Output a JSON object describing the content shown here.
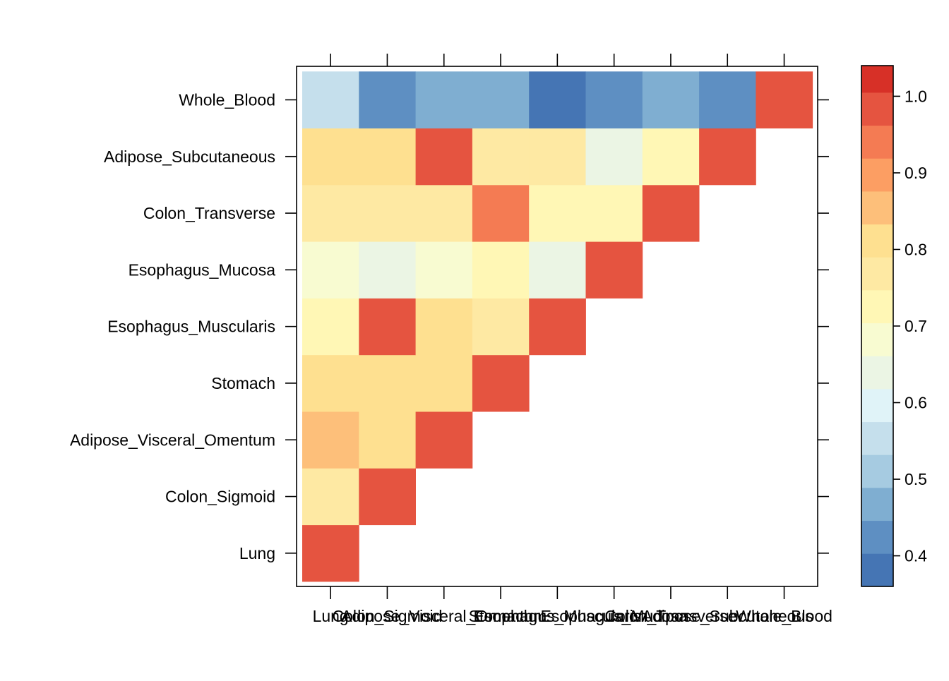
{
  "chart_data": {
    "type": "heatmap",
    "title": "",
    "xlabel": "",
    "ylabel": "",
    "categories": [
      "Lung",
      "Colon_Sigmoid",
      "Adipose_Visceral_Omentum",
      "Stomach",
      "Esophagus_Muscularis",
      "Esophagus_Mucosa",
      "Colon_Transverse",
      "Adipose_Subcutaneous",
      "Whole_Blood"
    ],
    "x_tick_labels": [
      "Lung",
      "Colon_Sigmoid",
      "Adipose_Visceral_Omentum",
      "Stomach",
      "Esophagus_Muscularis",
      "Esophagus_Mucosa",
      "Colon_Transverse",
      "Adipose_Subcutaneous",
      "Whole_Blood"
    ],
    "y_tick_labels": [
      "Lung",
      "Colon_Sigmoid",
      "Adipose_Visceral_Omentum",
      "Stomach",
      "Esophagus_Muscularis",
      "Esophagus_Mucosa",
      "Colon_Transverse",
      "Adipose_Subcutaneous",
      "Whole_Blood"
    ],
    "matrix": [
      [
        1.0,
        null,
        null,
        null,
        null,
        null,
        null,
        null,
        null
      ],
      [
        0.77,
        1.0,
        null,
        null,
        null,
        null,
        null,
        null,
        null
      ],
      [
        0.86,
        0.79,
        1.0,
        null,
        null,
        null,
        null,
        null,
        null
      ],
      [
        0.79,
        0.79,
        0.79,
        1.0,
        null,
        null,
        null,
        null,
        null
      ],
      [
        0.73,
        0.97,
        0.79,
        0.77,
        1.0,
        null,
        null,
        null,
        null
      ],
      [
        0.69,
        0.66,
        0.69,
        0.73,
        0.66,
        1.0,
        null,
        null,
        null
      ],
      [
        0.77,
        0.77,
        0.77,
        0.93,
        0.73,
        0.73,
        1.0,
        null,
        null
      ],
      [
        0.79,
        0.79,
        0.97,
        0.77,
        0.77,
        0.66,
        0.73,
        1.0,
        null
      ],
      [
        0.56,
        0.43,
        0.48,
        0.48,
        0.39,
        0.43,
        0.48,
        0.43,
        1.0
      ]
    ],
    "colorkey": {
      "breaks": [
        0.36,
        0.403,
        0.446,
        0.489,
        0.532,
        0.575,
        0.618,
        0.661,
        0.704,
        0.747,
        0.79,
        0.833,
        0.876,
        0.919,
        0.962,
        1.005,
        1.04
      ],
      "colors": [
        "#4575B4",
        "#5E8FC2",
        "#7FAED1",
        "#A6CBE1",
        "#C5DFEC",
        "#E0F3F8",
        "#EBF5E4",
        "#F8FBD1",
        "#FFF7B5",
        "#FEE9A3",
        "#FEE090",
        "#FDBF7A",
        "#FC9E63",
        "#F47B53",
        "#E55440",
        "#D73027"
      ],
      "tick_labels": [
        "0.4",
        "0.5",
        "0.6",
        "0.7",
        "0.8",
        "0.9",
        "1.0"
      ],
      "tick_values": [
        0.4,
        0.5,
        0.6,
        0.7,
        0.8,
        0.9,
        1.0
      ]
    },
    "grid": false,
    "legend": "right"
  }
}
